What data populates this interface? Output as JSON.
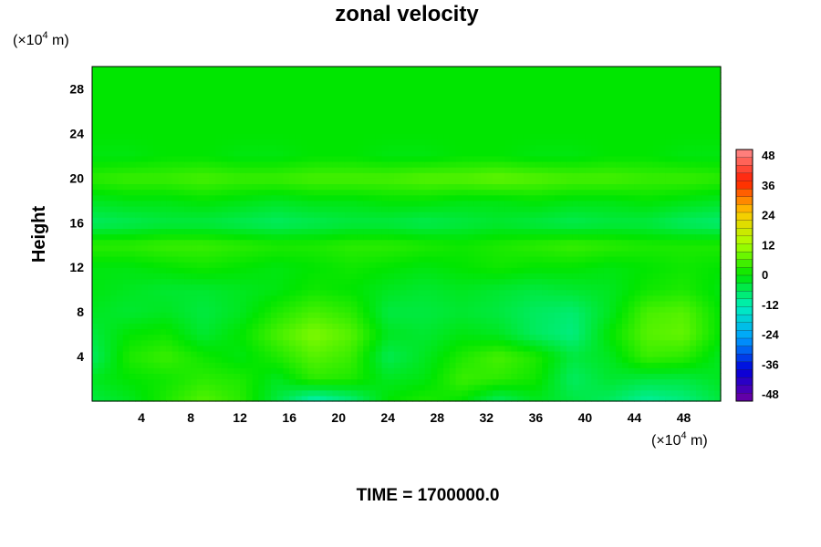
{
  "chart_data": {
    "type": "heatmap",
    "title": "zonal velocity",
    "ylabel": "Height",
    "xlabel": "",
    "x_unit": {
      "prefix": "(×10",
      "exp": "4",
      "suffix": " m)"
    },
    "y_unit": {
      "prefix": "(×10",
      "exp": "4",
      "suffix": " m)"
    },
    "xlim": [
      0,
      51
    ],
    "ylim": [
      0,
      30
    ],
    "xticks": [
      4,
      8,
      12,
      16,
      20,
      24,
      28,
      32,
      36,
      40,
      44,
      48
    ],
    "yticks": [
      4,
      8,
      12,
      16,
      20,
      24,
      28
    ],
    "colorbar": {
      "range": [
        -48,
        48
      ],
      "ticks": [
        48,
        36,
        24,
        12,
        0,
        -12,
        -24,
        -36,
        -48
      ],
      "levels": 32
    },
    "x": [
      0,
      3,
      6,
      9,
      12,
      15,
      18,
      21,
      24,
      27,
      30,
      33,
      36,
      39,
      42,
      45,
      48,
      51
    ],
    "y": [
      0,
      2,
      4,
      6,
      8,
      10,
      12,
      14,
      16,
      18,
      20,
      22,
      24,
      26,
      28,
      30
    ],
    "values": [
      [
        -4,
        -2,
        2,
        6,
        3,
        -4,
        -12,
        -8,
        0,
        2,
        0,
        -6,
        -2,
        -4,
        -6,
        -10,
        -8,
        -4
      ],
      [
        -2,
        0,
        1,
        3,
        2,
        -2,
        3,
        2,
        -2,
        -1,
        4,
        3,
        1,
        -6,
        -3,
        -4,
        -4,
        -2
      ],
      [
        -6,
        2,
        4,
        1,
        -1,
        2,
        6,
        4,
        -5,
        -2,
        2,
        5,
        2,
        -4,
        -2,
        4,
        3,
        -2
      ],
      [
        -4,
        0,
        1,
        -3,
        0,
        5,
        9,
        6,
        -2,
        -3,
        -1,
        -2,
        -6,
        -8,
        0,
        6,
        7,
        0
      ],
      [
        -2,
        -3,
        -2,
        -4,
        -2,
        2,
        5,
        3,
        -4,
        -4,
        -3,
        -4,
        -6,
        -7,
        -2,
        5,
        6,
        0
      ],
      [
        -1,
        -2,
        -3,
        -3,
        -2,
        -1,
        1,
        0,
        -2,
        -3,
        -2,
        -3,
        -4,
        -3,
        -2,
        1,
        2,
        -1
      ],
      [
        -1,
        -1,
        0,
        1,
        0,
        -1,
        0,
        1,
        0,
        -1,
        0,
        1,
        0,
        0,
        -1,
        0,
        1,
        0
      ],
      [
        3,
        3,
        4,
        4,
        3,
        2,
        2,
        3,
        3,
        2,
        1,
        2,
        3,
        4,
        3,
        2,
        2,
        2
      ],
      [
        -6,
        -5,
        -4,
        -4,
        -5,
        -6,
        -5,
        -4,
        -4,
        -5,
        -4,
        -3,
        -4,
        -5,
        -4,
        -4,
        -6,
        -7
      ],
      [
        -2,
        -1,
        -1,
        0,
        -1,
        -2,
        -1,
        -1,
        0,
        0,
        -1,
        -1,
        0,
        -1,
        -1,
        0,
        -1,
        -2
      ],
      [
        3,
        4,
        4,
        5,
        4,
        4,
        5,
        5,
        5,
        6,
        6,
        7,
        6,
        5,
        5,
        4,
        4,
        3
      ],
      [
        -1,
        -1,
        0,
        0,
        -1,
        -1,
        0,
        0,
        -1,
        -1,
        0,
        0,
        -1,
        -1,
        0,
        0,
        -1,
        -1
      ],
      [
        0,
        0,
        0,
        0,
        0,
        0,
        0,
        0,
        0,
        0,
        0,
        0,
        0,
        0,
        0,
        0,
        0,
        0
      ],
      [
        0,
        0,
        0,
        0,
        0,
        0,
        0,
        0,
        0,
        0,
        0,
        0,
        0,
        0,
        0,
        0,
        0,
        0
      ],
      [
        0,
        0,
        0,
        0,
        0,
        0,
        0,
        0,
        0,
        0,
        0,
        0,
        0,
        0,
        0,
        0,
        0,
        0
      ],
      [
        0,
        0,
        0,
        0,
        0,
        0,
        0,
        0,
        0,
        0,
        0,
        0,
        0,
        0,
        0,
        0,
        0,
        0
      ]
    ]
  },
  "footer": {
    "time_label": "TIME = 1700000.0"
  }
}
